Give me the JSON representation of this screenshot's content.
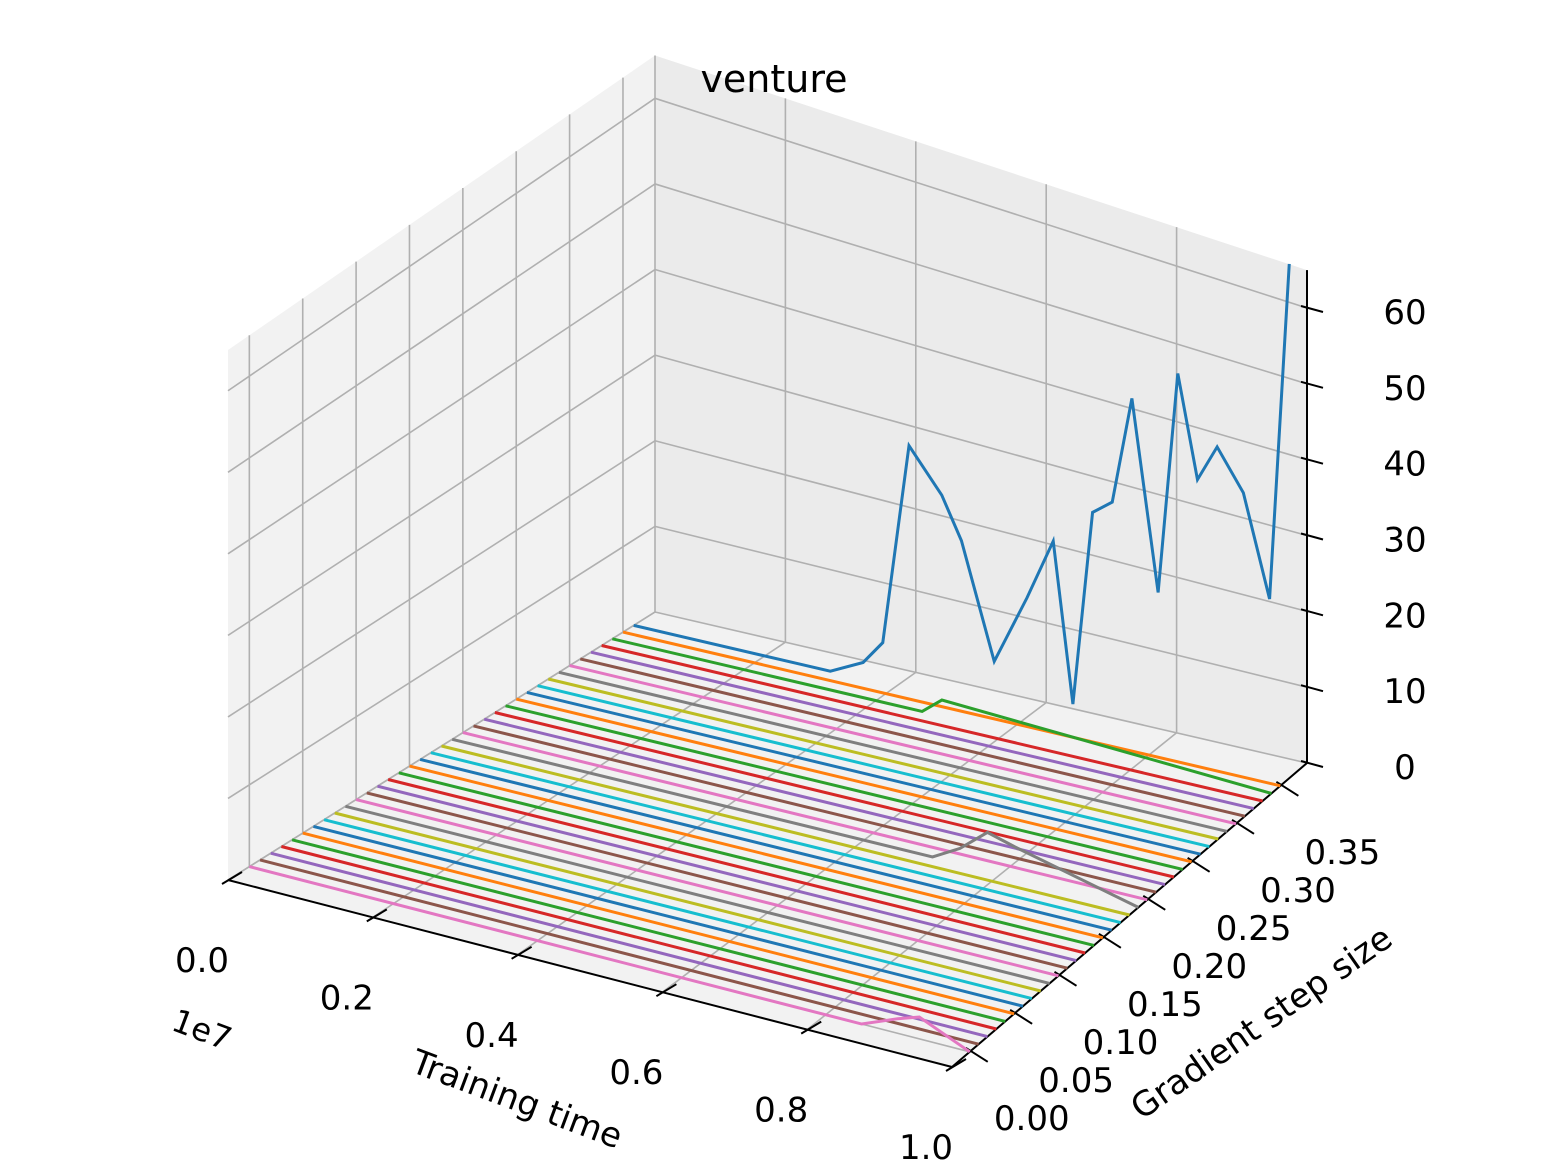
{
  "chart_data": {
    "type": "line",
    "projection": "3d",
    "title": "venture",
    "xlabel": "Training time",
    "ylabel": "Gradient step size",
    "zlabel": "",
    "x_offset_text": "1e7",
    "xlim": [
      0,
      1.0
    ],
    "ylim": [
      -0.02,
      0.38
    ],
    "zlim": [
      0,
      65
    ],
    "x_ticks": [
      "0.0",
      "0.2",
      "0.4",
      "0.6",
      "0.8",
      "1.0"
    ],
    "y_ticks": [
      "0.00",
      "0.05",
      "0.10",
      "0.15",
      "0.20",
      "0.25",
      "0.30",
      "0.35"
    ],
    "z_ticks": [
      "0",
      "10",
      "20",
      "30",
      "40",
      "50",
      "60"
    ],
    "grid": true,
    "series_note_none": "",
    "color_cycle": [
      "#1f77b4",
      "#ff7f0e",
      "#2ca02c",
      "#d62728",
      "#9467bd",
      "#8c564b",
      "#e377c2",
      "#7f7f7f",
      "#bcbd22",
      "#17becf"
    ],
    "series": [
      {
        "y": 0.36,
        "x": [
          0.0,
          0.25,
          0.3,
          0.35,
          0.38,
          0.42,
          0.47,
          0.5,
          0.55,
          0.6,
          0.64,
          0.67,
          0.7,
          0.73,
          0.76,
          0.8,
          0.83,
          0.86,
          0.89,
          0.93,
          0.97,
          1.0
        ],
        "z": [
          0,
          0,
          0,
          2,
          5,
          30,
          25,
          20,
          6,
          15,
          23,
          3,
          28,
          30,
          44,
          20,
          49,
          36,
          41,
          36,
          23,
          68
        ]
      },
      {
        "y": 0.35,
        "x": [
          0,
          1.0
        ],
        "z": [
          0,
          0
        ]
      },
      {
        "y": 0.34,
        "x": [
          0.0,
          0.4,
          0.47,
          0.5,
          1.0
        ],
        "z": [
          0,
          0,
          0,
          2,
          0
        ]
      },
      {
        "y": 0.33,
        "x": [
          0,
          1.0
        ],
        "z": [
          0,
          0
        ]
      },
      {
        "y": 0.32,
        "x": [
          0,
          1.0
        ],
        "z": [
          0,
          0
        ]
      },
      {
        "y": 0.31,
        "x": [
          0,
          1.0
        ],
        "z": [
          0,
          0
        ]
      },
      {
        "y": 0.3,
        "x": [
          0,
          1.0
        ],
        "z": [
          0,
          0
        ]
      },
      {
        "y": 0.29,
        "x": [
          0,
          1.0
        ],
        "z": [
          0,
          0
        ]
      },
      {
        "y": 0.28,
        "x": [
          0,
          1.0
        ],
        "z": [
          0,
          0
        ]
      },
      {
        "y": 0.27,
        "x": [
          0,
          1.0
        ],
        "z": [
          0,
          0
        ]
      },
      {
        "y": 0.26,
        "x": [
          0,
          1.0
        ],
        "z": [
          0,
          0
        ]
      },
      {
        "y": 0.25,
        "x": [
          0,
          1.0
        ],
        "z": [
          0,
          0
        ]
      },
      {
        "y": 0.24,
        "x": [
          0,
          1.0
        ],
        "z": [
          0,
          0
        ]
      },
      {
        "y": 0.23,
        "x": [
          0,
          1.0
        ],
        "z": [
          0,
          0
        ]
      },
      {
        "y": 0.22,
        "x": [
          0,
          1.0
        ],
        "z": [
          0,
          0
        ]
      },
      {
        "y": 0.21,
        "x": [
          0,
          1.0
        ],
        "z": [
          0,
          0
        ]
      },
      {
        "y": 0.2,
        "x": [
          0,
          1.0
        ],
        "z": [
          0,
          0
        ]
      },
      {
        "y": 0.19,
        "x": [
          0.0,
          0.7,
          0.74,
          0.78,
          0.82,
          1.0
        ],
        "z": [
          0,
          0,
          2,
          5,
          4,
          0
        ]
      },
      {
        "y": 0.18,
        "x": [
          0,
          1.0
        ],
        "z": [
          0,
          0
        ]
      },
      {
        "y": 0.17,
        "x": [
          0,
          1.0
        ],
        "z": [
          0,
          0
        ]
      },
      {
        "y": 0.16,
        "x": [
          0,
          1.0
        ],
        "z": [
          0,
          0
        ]
      },
      {
        "y": 0.15,
        "x": [
          0,
          1.0
        ],
        "z": [
          0,
          0
        ]
      },
      {
        "y": 0.14,
        "x": [
          0,
          1.0
        ],
        "z": [
          0,
          0
        ]
      },
      {
        "y": 0.13,
        "x": [
          0,
          1.0
        ],
        "z": [
          0,
          0
        ]
      },
      {
        "y": 0.12,
        "x": [
          0,
          1.0
        ],
        "z": [
          0,
          0
        ]
      },
      {
        "y": 0.11,
        "x": [
          0,
          1.0
        ],
        "z": [
          0,
          0
        ]
      },
      {
        "y": 0.1,
        "x": [
          0,
          1.0
        ],
        "z": [
          0,
          0
        ]
      },
      {
        "y": 0.09,
        "x": [
          0,
          1.0
        ],
        "z": [
          0,
          0
        ]
      },
      {
        "y": 0.08,
        "x": [
          0,
          1.0
        ],
        "z": [
          0,
          0
        ]
      },
      {
        "y": 0.07,
        "x": [
          0,
          1.0
        ],
        "z": [
          0,
          0
        ]
      },
      {
        "y": 0.06,
        "x": [
          0,
          1.0
        ],
        "z": [
          0,
          0
        ]
      },
      {
        "y": 0.05,
        "x": [
          0,
          1.0
        ],
        "z": [
          0,
          0
        ]
      },
      {
        "y": 0.04,
        "x": [
          0,
          1.0
        ],
        "z": [
          0,
          0
        ]
      },
      {
        "y": 0.03,
        "x": [
          0,
          1.0
        ],
        "z": [
          0,
          0
        ]
      },
      {
        "y": 0.02,
        "x": [
          0,
          1.0
        ],
        "z": [
          0,
          0
        ]
      },
      {
        "y": 0.01,
        "x": [
          0,
          1.0
        ],
        "z": [
          0,
          0
        ]
      },
      {
        "y": 0.0,
        "x": [
          0.0,
          0.85,
          0.9,
          0.93,
          1.0
        ],
        "z": [
          0,
          0,
          2,
          3,
          0
        ]
      }
    ]
  }
}
